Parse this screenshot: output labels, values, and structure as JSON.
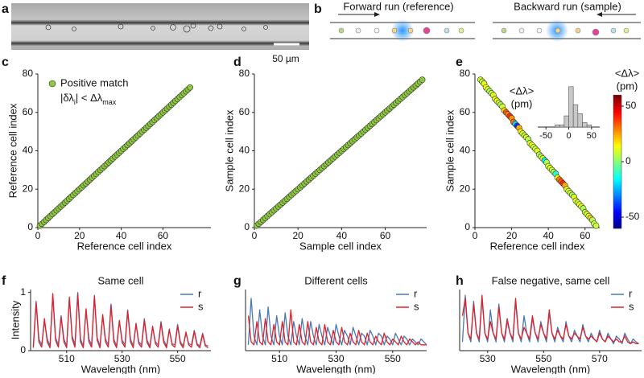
{
  "panel_a": {
    "panel": "a",
    "scale_bar": "50 µm"
  },
  "panel_b": {
    "panel": "b",
    "forward": "Forward run (reference)",
    "backward": "Backward run (sample)"
  },
  "chart_data": [
    {
      "type": "scatter",
      "panel": "c",
      "xlabel": "Reference cell index",
      "ylabel": "Reference cell index",
      "color": "#8dc63f",
      "legend_label": "Positive match",
      "annotation": [
        "|δλ",
        "i",
        "| < Δλ",
        "max"
      ],
      "xlim": [
        0,
        83
      ],
      "ylim": [
        0,
        80
      ],
      "xticks": [
        0,
        20,
        40,
        60
      ],
      "yticks": [
        0,
        20,
        40,
        60,
        80
      ],
      "x": [
        1,
        2,
        3,
        4,
        5,
        6,
        7,
        8,
        9,
        10,
        11,
        12,
        13,
        14,
        15,
        16,
        17,
        18,
        19,
        20,
        21,
        22,
        23,
        24,
        25,
        26,
        27,
        28,
        29,
        30,
        31,
        32,
        33,
        34,
        35,
        36,
        37,
        38,
        39,
        40,
        41,
        42,
        43,
        44,
        45,
        46,
        47,
        48,
        49,
        50,
        51,
        52,
        53,
        54,
        55,
        56,
        57,
        58,
        59,
        60,
        61,
        62,
        63,
        64,
        65,
        66,
        67,
        68,
        69,
        70,
        71,
        72,
        73
      ],
      "values": [
        1,
        2,
        3,
        4,
        5,
        6,
        7,
        8,
        9,
        10,
        11,
        12,
        13,
        14,
        15,
        16,
        17,
        18,
        19,
        20,
        21,
        22,
        23,
        24,
        25,
        26,
        27,
        28,
        29,
        30,
        31,
        32,
        33,
        34,
        35,
        36,
        37,
        38,
        39,
        40,
        41,
        42,
        43,
        44,
        45,
        46,
        47,
        48,
        49,
        50,
        51,
        52,
        53,
        54,
        55,
        56,
        57,
        58,
        59,
        60,
        61,
        62,
        63,
        64,
        65,
        66,
        67,
        68,
        69,
        70,
        71,
        72,
        73
      ]
    },
    {
      "type": "scatter",
      "panel": "d",
      "xlabel": "Sample cell index",
      "ylabel": "Sample cell index",
      "color": "#8dc63f",
      "xlim": [
        0,
        79
      ],
      "ylim": [
        0,
        80
      ],
      "xticks": [
        0,
        20,
        40,
        60
      ],
      "yticks": [
        0,
        20,
        40,
        60,
        80
      ],
      "x": [
        1,
        2,
        3,
        4,
        5,
        6,
        7,
        8,
        9,
        10,
        11,
        12,
        13,
        14,
        15,
        16,
        17,
        18,
        19,
        20,
        21,
        22,
        23,
        24,
        25,
        26,
        27,
        28,
        29,
        30,
        31,
        32,
        33,
        34,
        35,
        36,
        37,
        38,
        39,
        40,
        41,
        42,
        43,
        44,
        45,
        46,
        47,
        48,
        49,
        50,
        51,
        52,
        53,
        54,
        55,
        56,
        57,
        58,
        59,
        60,
        61,
        62,
        63,
        64,
        65,
        66,
        67,
        68,
        69,
        70,
        71,
        72,
        73,
        74,
        75,
        76,
        77
      ],
      "values": [
        1,
        2,
        3,
        4,
        5,
        6,
        7,
        8,
        9,
        10,
        11,
        12,
        13,
        14,
        15,
        16,
        17,
        18,
        19,
        20,
        21,
        22,
        23,
        24,
        25,
        26,
        27,
        28,
        29,
        30,
        31,
        32,
        33,
        34,
        35,
        36,
        37,
        38,
        39,
        40,
        41,
        42,
        43,
        44,
        45,
        46,
        47,
        48,
        49,
        50,
        51,
        52,
        53,
        54,
        55,
        56,
        57,
        58,
        59,
        60,
        61,
        62,
        63,
        64,
        65,
        66,
        67,
        68,
        69,
        70,
        71,
        72,
        73,
        74,
        75,
        76,
        77
      ]
    },
    {
      "type": "scatter",
      "panel": "e",
      "xlabel": "Reference cell index",
      "ylabel": "Sample cell index",
      "colormap": "jet",
      "zlim": [
        -60,
        60
      ],
      "zticks": [
        50,
        0,
        -50
      ],
      "colorbar_label": [
        "<Δλ>",
        "(pm)"
      ],
      "xlim": [
        0,
        68
      ],
      "ylim": [
        0,
        80
      ],
      "xticks": [
        0,
        20,
        40,
        60
      ],
      "yticks": [
        0,
        20,
        40,
        60,
        80
      ],
      "x": [
        3,
        4,
        5,
        6,
        7,
        8,
        9,
        10,
        11,
        12,
        13,
        14,
        15,
        16,
        17,
        18,
        19,
        20,
        21,
        22,
        23,
        24,
        25,
        26,
        27,
        28,
        29,
        30,
        31,
        32,
        33,
        34,
        35,
        36,
        37,
        38,
        39,
        40,
        41,
        42,
        43,
        44,
        45,
        46,
        47,
        48,
        49,
        50,
        51,
        52,
        53,
        54,
        55,
        56,
        57,
        58,
        59,
        60,
        61,
        62,
        63,
        64,
        65,
        66
      ],
      "values": [
        77,
        76,
        75,
        73,
        72,
        71,
        70,
        69,
        67,
        66,
        65,
        64,
        63,
        61,
        60,
        59,
        58,
        57,
        55,
        54,
        53,
        52,
        50,
        49,
        48,
        47,
        46,
        44,
        43,
        42,
        41,
        40,
        38,
        37,
        36,
        35,
        34,
        32,
        31,
        30,
        29,
        28,
        26,
        25,
        24,
        23,
        22,
        20,
        19,
        18,
        17,
        16,
        14,
        13,
        12,
        11,
        10,
        8,
        7,
        6,
        5,
        4,
        2,
        1
      ],
      "z": [
        10,
        8,
        12,
        15,
        10,
        5,
        8,
        12,
        10,
        15,
        8,
        5,
        10,
        20,
        35,
        30,
        40,
        28,
        32,
        -20,
        -40,
        25,
        15,
        10,
        8,
        12,
        5,
        10,
        15,
        8,
        10,
        12,
        5,
        8,
        10,
        -15,
        5,
        10,
        12,
        8,
        5,
        -10,
        15,
        30,
        35,
        40,
        25,
        12,
        10,
        8,
        5,
        10,
        12,
        8,
        15,
        10,
        5,
        8,
        12,
        10,
        20,
        5,
        10,
        8
      ]
    },
    {
      "type": "histogram",
      "label": [
        "<Δλ>",
        "(pm)"
      ],
      "color": "#c8c8c8",
      "xlim": [
        -68,
        68
      ],
      "ylim": [
        0,
        19
      ],
      "xticks": [
        -50,
        0,
        50
      ],
      "bins": [
        -50,
        -40,
        -30,
        -20,
        -10,
        0,
        10,
        20,
        30,
        40,
        50
      ],
      "values": [
        0,
        0,
        1,
        1,
        5,
        18,
        10,
        6,
        2,
        1
      ]
    },
    {
      "type": "line",
      "panel": "f",
      "title": "Same cell",
      "xlabel": "Wavelength (nm)",
      "ylabel": "Intensity",
      "xlim": [
        497,
        562
      ],
      "ylim": [
        0,
        1.05
      ],
      "xticks": [
        510,
        530,
        550
      ],
      "yticks": [
        0,
        1
      ],
      "x": [
        498,
        499,
        500,
        501,
        502,
        503,
        504,
        505,
        506,
        507,
        508,
        509,
        510,
        511,
        512,
        513,
        514,
        515,
        516,
        517,
        518,
        519,
        520,
        521,
        522,
        523,
        524,
        525,
        526,
        527,
        528,
        529,
        530,
        531,
        532,
        533,
        534,
        535,
        536,
        537,
        538,
        539,
        540,
        541,
        542,
        543,
        544,
        545,
        546,
        547,
        548,
        549,
        550,
        551,
        552,
        553,
        554,
        555,
        556,
        557,
        558,
        559,
        560,
        561
      ],
      "series": [
        {
          "name": "r",
          "color": "#4a78b5",
          "values": [
            0.08,
            0.85,
            0.2,
            0.1,
            0.5,
            0.2,
            0.08,
            0.95,
            0.22,
            0.1,
            0.6,
            0.2,
            0.08,
            0.9,
            0.25,
            0.1,
            1.0,
            0.2,
            0.08,
            0.7,
            0.2,
            0.1,
            0.95,
            0.22,
            0.08,
            0.6,
            0.2,
            0.1,
            0.8,
            0.2,
            0.08,
            0.5,
            0.18,
            0.1,
            0.7,
            0.2,
            0.08,
            0.45,
            0.15,
            0.1,
            0.55,
            0.18,
            0.08,
            0.4,
            0.15,
            0.1,
            0.5,
            0.18,
            0.08,
            0.35,
            0.12,
            0.1,
            0.45,
            0.15,
            0.08,
            0.3,
            0.12,
            0.1,
            0.35,
            0.12,
            0.08,
            0.3,
            0.1,
            0.08
          ]
        },
        {
          "name": "s",
          "color": "#e0202a",
          "values": [
            0.05,
            0.82,
            0.15,
            0.06,
            0.55,
            0.15,
            0.05,
            0.98,
            0.18,
            0.06,
            0.58,
            0.15,
            0.05,
            0.92,
            0.2,
            0.06,
            0.97,
            0.15,
            0.05,
            0.72,
            0.15,
            0.06,
            0.93,
            0.18,
            0.05,
            0.62,
            0.15,
            0.06,
            0.78,
            0.15,
            0.05,
            0.52,
            0.14,
            0.06,
            0.68,
            0.15,
            0.05,
            0.47,
            0.12,
            0.06,
            0.52,
            0.14,
            0.05,
            0.42,
            0.12,
            0.06,
            0.48,
            0.14,
            0.05,
            0.37,
            0.1,
            0.06,
            0.43,
            0.12,
            0.05,
            0.32,
            0.1,
            0.06,
            0.33,
            0.1,
            0.05,
            0.28,
            0.08,
            0.05
          ]
        }
      ]
    },
    {
      "type": "line",
      "panel": "g",
      "title": "Different cells",
      "xlabel": "Wavelength (nm)",
      "xlim": [
        498,
        562
      ],
      "ylim": [
        0,
        1.05
      ],
      "xticks": [
        510,
        530,
        550
      ],
      "x": [
        499,
        500,
        501,
        502,
        503,
        504,
        505,
        506,
        507,
        508,
        509,
        510,
        511,
        512,
        513,
        514,
        515,
        516,
        517,
        518,
        519,
        520,
        521,
        522,
        523,
        524,
        525,
        526,
        527,
        528,
        529,
        530,
        531,
        532,
        533,
        534,
        535,
        536,
        537,
        538,
        539,
        540,
        541,
        542,
        543,
        544,
        545,
        546,
        547,
        548,
        549,
        550,
        551,
        552,
        553,
        554,
        555,
        556,
        557,
        558,
        559,
        560,
        561,
        562
      ],
      "series": [
        {
          "name": "r",
          "color": "#4a78b5",
          "values": [
            0.1,
            0.9,
            0.25,
            0.1,
            0.7,
            0.25,
            0.1,
            0.75,
            0.25,
            0.1,
            0.6,
            0.25,
            0.1,
            0.65,
            0.25,
            0.1,
            0.5,
            0.25,
            0.1,
            0.55,
            0.25,
            0.1,
            0.5,
            0.25,
            0.1,
            0.45,
            0.25,
            0.1,
            0.4,
            0.25,
            0.1,
            0.45,
            0.25,
            0.1,
            0.35,
            0.25,
            0.1,
            0.4,
            0.25,
            0.1,
            0.3,
            0.25,
            0.1,
            0.35,
            0.25,
            0.1,
            0.3,
            0.25,
            0.1,
            0.25,
            0.2,
            0.1,
            0.3,
            0.2,
            0.1,
            0.25,
            0.2,
            0.1,
            0.2,
            0.15,
            0.1,
            0.2,
            0.15,
            0.1
          ]
        },
        {
          "name": "s",
          "color": "#e0202a",
          "values": [
            0.6,
            0.15,
            0.1,
            0.5,
            0.15,
            0.1,
            0.55,
            0.15,
            0.1,
            0.45,
            0.15,
            0.1,
            0.5,
            0.15,
            0.1,
            0.7,
            0.15,
            0.1,
            0.45,
            0.15,
            0.1,
            0.5,
            0.15,
            0.1,
            0.4,
            0.15,
            0.1,
            0.45,
            0.15,
            0.1,
            0.35,
            0.15,
            0.1,
            0.4,
            0.15,
            0.1,
            0.3,
            0.15,
            0.1,
            0.35,
            0.15,
            0.1,
            0.3,
            0.15,
            0.1,
            0.25,
            0.15,
            0.1,
            0.3,
            0.15,
            0.1,
            0.2,
            0.15,
            0.1,
            0.25,
            0.15,
            0.1,
            0.2,
            0.15,
            0.1,
            0.15,
            0.1,
            0.1,
            0.1
          ]
        }
      ]
    },
    {
      "type": "line",
      "panel": "h",
      "title": "False negative, same cell",
      "xlabel": "Wavelength (nm)",
      "xlim": [
        520,
        585
      ],
      "ylim": [
        0,
        1.05
      ],
      "xticks": [
        530,
        550,
        570
      ],
      "x": [
        521,
        522,
        523,
        524,
        525,
        526,
        527,
        528,
        529,
        530,
        531,
        532,
        533,
        534,
        535,
        536,
        537,
        538,
        539,
        540,
        541,
        542,
        543,
        544,
        545,
        546,
        547,
        548,
        549,
        550,
        551,
        552,
        553,
        554,
        555,
        556,
        557,
        558,
        559,
        560,
        561,
        562,
        563,
        564,
        565,
        566,
        567,
        568,
        569,
        570,
        571,
        572,
        573,
        574,
        575,
        576,
        577,
        578,
        579,
        580,
        581,
        582,
        583,
        584
      ],
      "series": [
        {
          "name": "r",
          "color": "#4a78b5",
          "values": [
            0.15,
            0.95,
            0.3,
            0.15,
            0.85,
            0.3,
            0.15,
            0.9,
            0.3,
            0.15,
            0.7,
            0.3,
            0.15,
            0.8,
            0.3,
            0.15,
            0.5,
            0.3,
            0.15,
            0.85,
            0.3,
            0.15,
            0.6,
            0.3,
            0.15,
            0.55,
            0.3,
            0.15,
            0.5,
            0.3,
            0.15,
            0.65,
            0.3,
            0.15,
            0.4,
            0.25,
            0.15,
            0.5,
            0.25,
            0.15,
            0.35,
            0.25,
            0.15,
            0.45,
            0.25,
            0.15,
            0.3,
            0.2,
            0.15,
            0.35,
            0.2,
            0.15,
            0.3,
            0.2,
            0.12,
            0.25,
            0.2,
            0.12,
            0.3,
            0.2,
            0.12,
            0.2,
            0.15,
            0.12
          ]
        },
        {
          "name": "s",
          "color": "#e0202a",
          "values": [
            0.6,
            0.9,
            0.3,
            0.2,
            0.8,
            0.3,
            0.2,
            0.95,
            0.3,
            0.2,
            0.5,
            0.3,
            0.2,
            0.75,
            0.3,
            0.2,
            0.55,
            0.3,
            0.2,
            0.9,
            0.3,
            0.2,
            0.4,
            0.3,
            0.2,
            0.6,
            0.3,
            0.2,
            0.45,
            0.3,
            0.2,
            0.7,
            0.3,
            0.2,
            0.35,
            0.25,
            0.2,
            0.45,
            0.25,
            0.2,
            0.3,
            0.25,
            0.2,
            0.4,
            0.25,
            0.2,
            0.25,
            0.2,
            0.15,
            0.3,
            0.2,
            0.15,
            0.25,
            0.2,
            0.15,
            0.2,
            0.15,
            0.15,
            0.25,
            0.15,
            0.12,
            0.15,
            0.12,
            0.12
          ]
        }
      ]
    }
  ]
}
